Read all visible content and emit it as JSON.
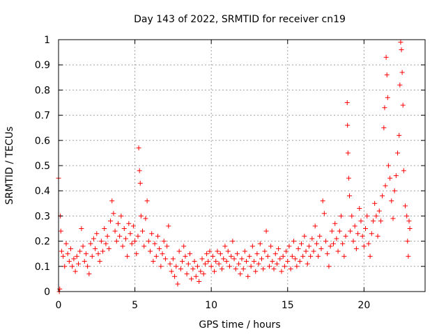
{
  "chart_data": {
    "type": "scatter",
    "title": "Day 143 of 2022, SRMTID for receiver cn19",
    "xlabel": "GPS time / hours",
    "ylabel": "SRMTID / TECUs",
    "xlim": [
      0,
      24
    ],
    "ylim": [
      0,
      1
    ],
    "xticks": [
      0,
      5,
      10,
      15,
      20
    ],
    "xtick_labels": [
      "0",
      "5",
      "10",
      "15",
      "20"
    ],
    "yticks": [
      0,
      0.1,
      0.2,
      0.3,
      0.4,
      0.5,
      0.6,
      0.7,
      0.8,
      0.9,
      1
    ],
    "ytick_labels": [
      "0",
      "0.1",
      "0.2",
      "0.3",
      "0.4",
      "0.5",
      "0.6",
      "0.7",
      "0.8",
      "0.9",
      "1"
    ],
    "grid": true,
    "marker": "plus",
    "marker_color": "#ff0000",
    "series": [
      {
        "name": "SRMTID",
        "points": [
          [
            0.0,
            0.45
          ],
          [
            0.05,
            0.0
          ],
          [
            0.08,
            0.01
          ],
          [
            0.12,
            0.3
          ],
          [
            0.15,
            0.24
          ],
          [
            0.2,
            0.16
          ],
          [
            0.3,
            0.14
          ],
          [
            0.4,
            0.1
          ],
          [
            0.5,
            0.19
          ],
          [
            0.6,
            0.15
          ],
          [
            0.7,
            0.12
          ],
          [
            0.8,
            0.17
          ],
          [
            0.9,
            0.1
          ],
          [
            1.0,
            0.13
          ],
          [
            1.1,
            0.08
          ],
          [
            1.2,
            0.14
          ],
          [
            1.3,
            0.11
          ],
          [
            1.4,
            0.16
          ],
          [
            1.5,
            0.25
          ],
          [
            1.6,
            0.18
          ],
          [
            1.7,
            0.12
          ],
          [
            1.8,
            0.15
          ],
          [
            1.9,
            0.1
          ],
          [
            2.0,
            0.07
          ],
          [
            2.1,
            0.19
          ],
          [
            2.2,
            0.14
          ],
          [
            2.3,
            0.21
          ],
          [
            2.4,
            0.17
          ],
          [
            2.5,
            0.23
          ],
          [
            2.6,
            0.15
          ],
          [
            2.7,
            0.12
          ],
          [
            2.8,
            0.2
          ],
          [
            2.9,
            0.16
          ],
          [
            3.0,
            0.25
          ],
          [
            3.1,
            0.19
          ],
          [
            3.2,
            0.22
          ],
          [
            3.3,
            0.17
          ],
          [
            3.4,
            0.28
          ],
          [
            3.5,
            0.36
          ],
          [
            3.6,
            0.31
          ],
          [
            3.7,
            0.24
          ],
          [
            3.8,
            0.2
          ],
          [
            3.9,
            0.27
          ],
          [
            4.0,
            0.22
          ],
          [
            4.1,
            0.3
          ],
          [
            4.2,
            0.18
          ],
          [
            4.3,
            0.25
          ],
          [
            4.4,
            0.21
          ],
          [
            4.5,
            0.14
          ],
          [
            4.6,
            0.27
          ],
          [
            4.7,
            0.23
          ],
          [
            4.8,
            0.19
          ],
          [
            4.9,
            0.26
          ],
          [
            5.0,
            0.2
          ],
          [
            5.1,
            0.15
          ],
          [
            5.2,
            0.22
          ],
          [
            5.25,
            0.57
          ],
          [
            5.3,
            0.48
          ],
          [
            5.35,
            0.43
          ],
          [
            5.4,
            0.3
          ],
          [
            5.5,
            0.24
          ],
          [
            5.6,
            0.18
          ],
          [
            5.7,
            0.29
          ],
          [
            5.8,
            0.36
          ],
          [
            5.9,
            0.2
          ],
          [
            6.0,
            0.16
          ],
          [
            6.1,
            0.23
          ],
          [
            6.2,
            0.12
          ],
          [
            6.3,
            0.19
          ],
          [
            6.4,
            0.14
          ],
          [
            6.5,
            0.22
          ],
          [
            6.6,
            0.17
          ],
          [
            6.7,
            0.1
          ],
          [
            6.8,
            0.15
          ],
          [
            6.9,
            0.2
          ],
          [
            7.0,
            0.13
          ],
          [
            7.1,
            0.18
          ],
          [
            7.2,
            0.26
          ],
          [
            7.3,
            0.11
          ],
          [
            7.4,
            0.08
          ],
          [
            7.5,
            0.13
          ],
          [
            7.6,
            0.06
          ],
          [
            7.7,
            0.1
          ],
          [
            7.8,
            0.03
          ],
          [
            7.9,
            0.16
          ],
          [
            8.0,
            0.09
          ],
          [
            8.1,
            0.12
          ],
          [
            8.2,
            0.18
          ],
          [
            8.3,
            0.14
          ],
          [
            8.4,
            0.07
          ],
          [
            8.5,
            0.11
          ],
          [
            8.6,
            0.15
          ],
          [
            8.7,
            0.05
          ],
          [
            8.8,
            0.09
          ],
          [
            8.9,
            0.12
          ],
          [
            9.0,
            0.06
          ],
          [
            9.1,
            0.1
          ],
          [
            9.2,
            0.04
          ],
          [
            9.3,
            0.08
          ],
          [
            9.4,
            0.13
          ],
          [
            9.5,
            0.07
          ],
          [
            9.6,
            0.11
          ],
          [
            9.7,
            0.15
          ],
          [
            9.8,
            0.12
          ],
          [
            9.9,
            0.16
          ],
          [
            10.0,
            0.1
          ],
          [
            10.1,
            0.14
          ],
          [
            10.2,
            0.08
          ],
          [
            10.3,
            0.12
          ],
          [
            10.4,
            0.16
          ],
          [
            10.5,
            0.11
          ],
          [
            10.6,
            0.15
          ],
          [
            10.7,
            0.09
          ],
          [
            10.8,
            0.13
          ],
          [
            10.9,
            0.18
          ],
          [
            11.0,
            0.12
          ],
          [
            11.1,
            0.16
          ],
          [
            11.2,
            0.1
          ],
          [
            11.3,
            0.14
          ],
          [
            11.4,
            0.2
          ],
          [
            11.5,
            0.13
          ],
          [
            11.6,
            0.09
          ],
          [
            11.7,
            0.15
          ],
          [
            11.8,
            0.11
          ],
          [
            11.9,
            0.07
          ],
          [
            12.0,
            0.13
          ],
          [
            12.1,
            0.09
          ],
          [
            12.2,
            0.16
          ],
          [
            12.3,
            0.12
          ],
          [
            12.4,
            0.06
          ],
          [
            12.5,
            0.14
          ],
          [
            12.6,
            0.1
          ],
          [
            12.7,
            0.18
          ],
          [
            12.8,
            0.12
          ],
          [
            12.9,
            0.08
          ],
          [
            13.0,
            0.15
          ],
          [
            13.1,
            0.11
          ],
          [
            13.2,
            0.19
          ],
          [
            13.3,
            0.13
          ],
          [
            13.4,
            0.09
          ],
          [
            13.5,
            0.16
          ],
          [
            13.6,
            0.24
          ],
          [
            13.7,
            0.14
          ],
          [
            13.8,
            0.1
          ],
          [
            13.9,
            0.18
          ],
          [
            14.0,
            0.12
          ],
          [
            14.1,
            0.09
          ],
          [
            14.2,
            0.15
          ],
          [
            14.3,
            0.11
          ],
          [
            14.4,
            0.17
          ],
          [
            14.5,
            0.13
          ],
          [
            14.6,
            0.08
          ],
          [
            14.7,
            0.14
          ],
          [
            14.8,
            0.1
          ],
          [
            14.9,
            0.16
          ],
          [
            15.0,
            0.12
          ],
          [
            15.1,
            0.18
          ],
          [
            15.2,
            0.09
          ],
          [
            15.3,
            0.14
          ],
          [
            15.4,
            0.2
          ],
          [
            15.5,
            0.13
          ],
          [
            15.6,
            0.1
          ],
          [
            15.7,
            0.17
          ],
          [
            15.8,
            0.12
          ],
          [
            15.9,
            0.19
          ],
          [
            16.0,
            0.14
          ],
          [
            16.1,
            0.22
          ],
          [
            16.2,
            0.16
          ],
          [
            16.3,
            0.11
          ],
          [
            16.4,
            0.18
          ],
          [
            16.5,
            0.14
          ],
          [
            16.6,
            0.21
          ],
          [
            16.7,
            0.16
          ],
          [
            16.8,
            0.26
          ],
          [
            16.9,
            0.19
          ],
          [
            17.0,
            0.14
          ],
          [
            17.1,
            0.22
          ],
          [
            17.2,
            0.17
          ],
          [
            17.3,
            0.36
          ],
          [
            17.4,
            0.31
          ],
          [
            17.5,
            0.2
          ],
          [
            17.6,
            0.15
          ],
          [
            17.7,
            0.1
          ],
          [
            17.8,
            0.18
          ],
          [
            17.9,
            0.24
          ],
          [
            18.0,
            0.19
          ],
          [
            18.1,
            0.27
          ],
          [
            18.2,
            0.21
          ],
          [
            18.3,
            0.16
          ],
          [
            18.4,
            0.24
          ],
          [
            18.5,
            0.3
          ],
          [
            18.6,
            0.19
          ],
          [
            18.7,
            0.14
          ],
          [
            18.8,
            0.22
          ],
          [
            18.9,
            0.75
          ],
          [
            18.92,
            0.66
          ],
          [
            18.95,
            0.55
          ],
          [
            19.0,
            0.45
          ],
          [
            19.05,
            0.38
          ],
          [
            19.1,
            0.24
          ],
          [
            19.2,
            0.3
          ],
          [
            19.3,
            0.2
          ],
          [
            19.4,
            0.26
          ],
          [
            19.5,
            0.17
          ],
          [
            19.6,
            0.23
          ],
          [
            19.7,
            0.33
          ],
          [
            19.8,
            0.28
          ],
          [
            19.9,
            0.22
          ],
          [
            20.0,
            0.18
          ],
          [
            20.1,
            0.25
          ],
          [
            20.2,
            0.3
          ],
          [
            20.3,
            0.19
          ],
          [
            20.4,
            0.14
          ],
          [
            20.5,
            0.23
          ],
          [
            20.6,
            0.28
          ],
          [
            20.7,
            0.35
          ],
          [
            20.8,
            0.3
          ],
          [
            20.9,
            0.22
          ],
          [
            21.0,
            0.32
          ],
          [
            21.1,
            0.28
          ],
          [
            21.2,
            0.38
          ],
          [
            21.3,
            0.65
          ],
          [
            21.35,
            0.73
          ],
          [
            21.4,
            0.42
          ],
          [
            21.45,
            0.93
          ],
          [
            21.5,
            0.86
          ],
          [
            21.55,
            0.77
          ],
          [
            21.6,
            0.5
          ],
          [
            21.7,
            0.45
          ],
          [
            21.8,
            0.36
          ],
          [
            21.9,
            0.29
          ],
          [
            22.0,
            0.4
          ],
          [
            22.1,
            0.46
          ],
          [
            22.2,
            0.55
          ],
          [
            22.3,
            0.62
          ],
          [
            22.35,
            0.82
          ],
          [
            22.4,
            0.99
          ],
          [
            22.45,
            0.96
          ],
          [
            22.5,
            0.87
          ],
          [
            22.55,
            0.74
          ],
          [
            22.6,
            0.48
          ],
          [
            22.7,
            0.34
          ],
          [
            22.8,
            0.3
          ],
          [
            22.85,
            0.2
          ],
          [
            22.9,
            0.14
          ],
          [
            22.95,
            0.28
          ],
          [
            23.0,
            0.25
          ]
        ]
      }
    ]
  }
}
